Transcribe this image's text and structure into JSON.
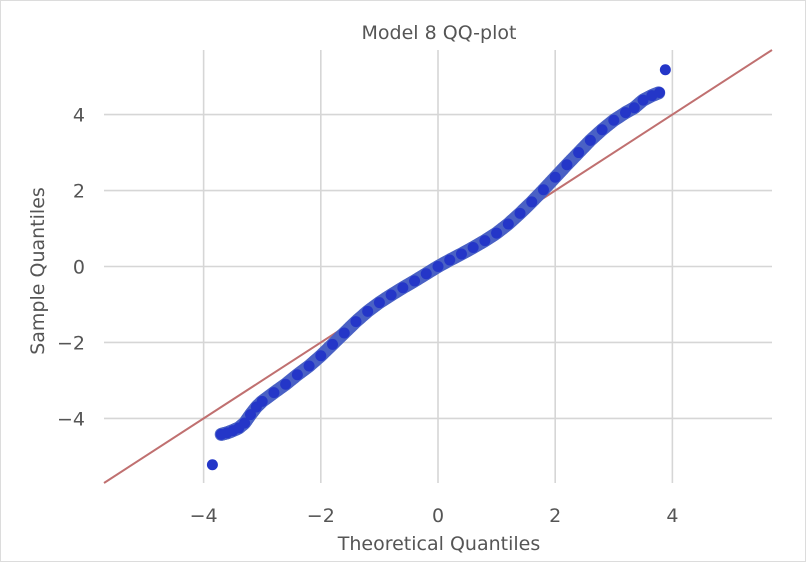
{
  "chart_data": {
    "type": "scatter",
    "title": "Model 8 QQ-plot",
    "xlabel": "Theoretical Quantiles",
    "ylabel": "Sample Quantiles",
    "xlim": [
      -5.7,
      5.7
    ],
    "ylim": [
      -5.7,
      5.7
    ],
    "xticks": [
      -4,
      -2,
      0,
      2,
      4
    ],
    "yticks": [
      -4,
      -2,
      0,
      2,
      4
    ],
    "grid": true,
    "colors": {
      "points": "#2436c8",
      "reference_line": "#c07070",
      "grid": "#d6d6d6",
      "background": "#ffffff",
      "text": "#555555"
    },
    "reference_line": {
      "x": [
        -5.7,
        5.7
      ],
      "y": [
        -5.7,
        5.7
      ]
    },
    "series": [
      {
        "values": [
          [
            -3.85,
            -5.22
          ],
          [
            -3.7,
            -4.42
          ],
          [
            -3.6,
            -4.38
          ],
          [
            -3.5,
            -4.32
          ],
          [
            -3.4,
            -4.25
          ],
          [
            -3.3,
            -4.12
          ],
          [
            -3.2,
            -3.9
          ],
          [
            -3.1,
            -3.7
          ],
          [
            -3.0,
            -3.55
          ],
          [
            -2.8,
            -3.32
          ],
          [
            -2.6,
            -3.1
          ],
          [
            -2.4,
            -2.85
          ],
          [
            -2.2,
            -2.62
          ],
          [
            -2.0,
            -2.35
          ],
          [
            -1.8,
            -2.05
          ],
          [
            -1.6,
            -1.75
          ],
          [
            -1.4,
            -1.45
          ],
          [
            -1.2,
            -1.18
          ],
          [
            -1.0,
            -0.95
          ],
          [
            -0.8,
            -0.75
          ],
          [
            -0.6,
            -0.56
          ],
          [
            -0.4,
            -0.38
          ],
          [
            -0.2,
            -0.19
          ],
          [
            0.0,
            0.0
          ],
          [
            0.2,
            0.17
          ],
          [
            0.4,
            0.33
          ],
          [
            0.6,
            0.5
          ],
          [
            0.8,
            0.68
          ],
          [
            1.0,
            0.88
          ],
          [
            1.2,
            1.12
          ],
          [
            1.4,
            1.4
          ],
          [
            1.6,
            1.7
          ],
          [
            1.8,
            2.02
          ],
          [
            2.0,
            2.35
          ],
          [
            2.2,
            2.68
          ],
          [
            2.4,
            3.0
          ],
          [
            2.6,
            3.32
          ],
          [
            2.8,
            3.6
          ],
          [
            3.0,
            3.85
          ],
          [
            3.2,
            4.05
          ],
          [
            3.35,
            4.18
          ],
          [
            3.5,
            4.38
          ],
          [
            3.65,
            4.5
          ],
          [
            3.78,
            4.58
          ],
          [
            3.88,
            5.18
          ]
        ]
      }
    ]
  }
}
